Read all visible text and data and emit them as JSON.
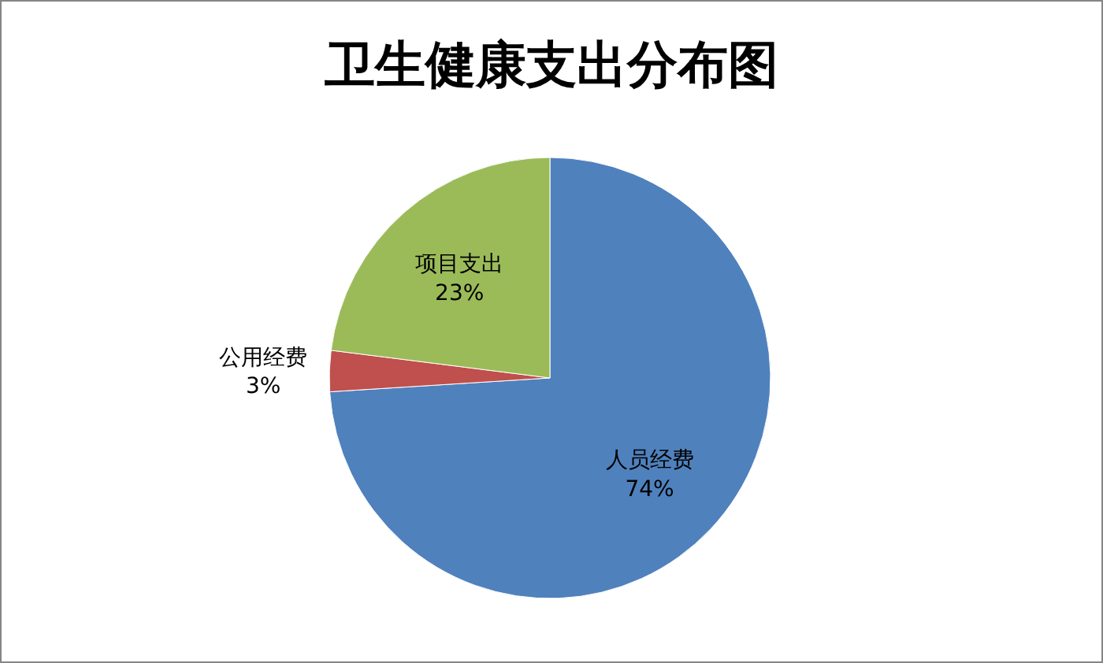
{
  "chart_data": {
    "type": "pie",
    "title": "卫生健康支出分布图",
    "categories": [
      "人员经费",
      "公用经费",
      "项目支出"
    ],
    "values": [
      74,
      3,
      23
    ],
    "colors": [
      "#4f81bd",
      "#c0504d",
      "#9bbb59"
    ],
    "value_labels": [
      "74%",
      "3%",
      "23%"
    ],
    "legend": false
  }
}
